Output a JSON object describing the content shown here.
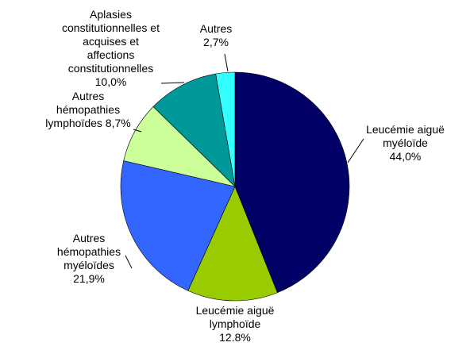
{
  "chart_data": {
    "type": "pie",
    "categories": [
      "Leucémie aiguë myéloïde",
      "Leucémie aiguë lymphoïde",
      "Autres hémopathies myéloïdes",
      "Autres hémopathies lymphoïdes",
      "Aplasies constitutionnelles et acquises et affections constitutionnelles",
      "Autres"
    ],
    "values": [
      44.0,
      12.8,
      21.9,
      8.7,
      10.0,
      2.7
    ],
    "value_labels": [
      "44,0%",
      "12.8%",
      "21,9%",
      "8,7%",
      "10,0%",
      "2,7%"
    ],
    "colors": [
      "#000066",
      "#99cc00",
      "#3366ff",
      "#ccff99",
      "#009999",
      "#33ffff"
    ]
  }
}
